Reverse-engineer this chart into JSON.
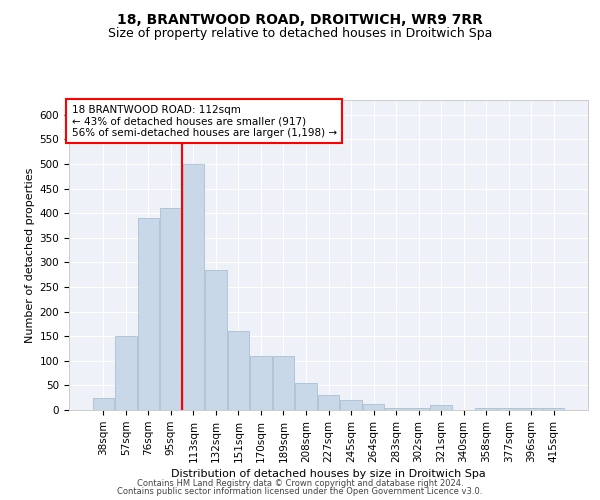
{
  "title": "18, BRANTWOOD ROAD, DROITWICH, WR9 7RR",
  "subtitle": "Size of property relative to detached houses in Droitwich Spa",
  "xlabel": "Distribution of detached houses by size in Droitwich Spa",
  "ylabel": "Number of detached properties",
  "footnote1": "Contains HM Land Registry data © Crown copyright and database right 2024.",
  "footnote2": "Contains public sector information licensed under the Open Government Licence v3.0.",
  "bar_labels": [
    "38sqm",
    "57sqm",
    "76sqm",
    "95sqm",
    "113sqm",
    "132sqm",
    "151sqm",
    "170sqm",
    "189sqm",
    "208sqm",
    "227sqm",
    "245sqm",
    "264sqm",
    "283sqm",
    "302sqm",
    "321sqm",
    "340sqm",
    "358sqm",
    "377sqm",
    "396sqm",
    "415sqm"
  ],
  "bar_values": [
    25,
    150,
    390,
    410,
    500,
    285,
    160,
    110,
    110,
    55,
    30,
    20,
    12,
    5,
    5,
    10,
    0,
    5,
    5,
    5,
    5
  ],
  "bar_color": "#c8d8e8",
  "bar_edgecolor": "#a0b8cc",
  "bar_linewidth": 0.5,
  "property_line_color": "red",
  "annotation_line1": "18 BRANTWOOD ROAD: 112sqm",
  "annotation_line2": "← 43% of detached houses are smaller (917)",
  "annotation_line3": "56% of semi-detached houses are larger (1,198) →",
  "annotation_box_color": "red",
  "ylim": [
    0,
    630
  ],
  "yticks": [
    0,
    50,
    100,
    150,
    200,
    250,
    300,
    350,
    400,
    450,
    500,
    550,
    600
  ],
  "bg_color": "#eef2f8",
  "grid_color": "white",
  "title_fontsize": 10,
  "subtitle_fontsize": 9,
  "axis_label_fontsize": 8,
  "tick_fontsize": 7.5,
  "annotation_fontsize": 7.5,
  "footnote_fontsize": 6
}
